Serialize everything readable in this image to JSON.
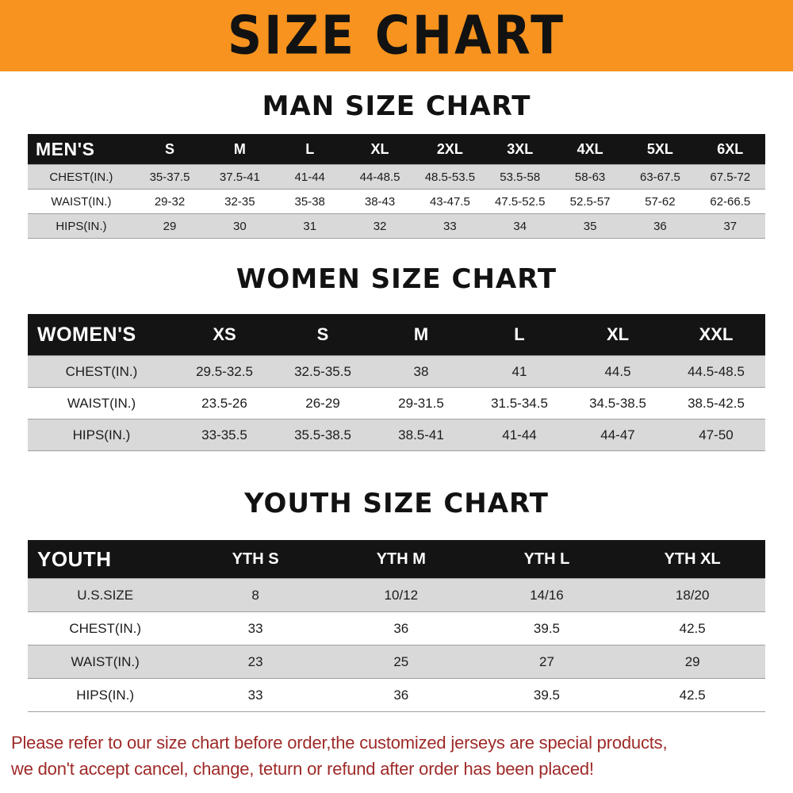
{
  "banner": {
    "title": "SIZE CHART",
    "bg_color": "#F7931E",
    "text_color": "#121212"
  },
  "chart_data": [
    {
      "type": "table",
      "title": "MAN SIZE CHART",
      "corner_label": "MEN'S",
      "columns": [
        "S",
        "M",
        "L",
        "XL",
        "2XL",
        "3XL",
        "4XL",
        "5XL",
        "6XL"
      ],
      "rows": [
        {
          "label": "CHEST(IN.)",
          "values": [
            "35-37.5",
            "37.5-41",
            "41-44",
            "44-48.5",
            "48.5-53.5",
            "53.5-58",
            "58-63",
            "63-67.5",
            "67.5-72"
          ]
        },
        {
          "label": "WAIST(IN.)",
          "values": [
            "29-32",
            "32-35",
            "35-38",
            "38-43",
            "43-47.5",
            "47.5-52.5",
            "52.5-57",
            "57-62",
            "62-66.5"
          ]
        },
        {
          "label": "HIPS(IN.)",
          "values": [
            "29",
            "30",
            "31",
            "32",
            "33",
            "34",
            "35",
            "36",
            "37"
          ]
        }
      ]
    },
    {
      "type": "table",
      "title": "WOMEN SIZE CHART",
      "corner_label": "WOMEN'S",
      "columns": [
        "XS",
        "S",
        "M",
        "L",
        "XL",
        "XXL"
      ],
      "rows": [
        {
          "label": "CHEST(IN.)",
          "values": [
            "29.5-32.5",
            "32.5-35.5",
            "38",
            "41",
            "44.5",
            "44.5-48.5"
          ]
        },
        {
          "label": "WAIST(IN.)",
          "values": [
            "23.5-26",
            "26-29",
            "29-31.5",
            "31.5-34.5",
            "34.5-38.5",
            "38.5-42.5"
          ]
        },
        {
          "label": "HIPS(IN.)",
          "values": [
            "33-35.5",
            "35.5-38.5",
            "38.5-41",
            "41-44",
            "44-47",
            "47-50"
          ]
        }
      ]
    },
    {
      "type": "table",
      "title": "YOUTH SIZE CHART",
      "corner_label": "YOUTH",
      "columns": [
        "YTH S",
        "YTH M",
        "YTH L",
        "YTH XL"
      ],
      "rows": [
        {
          "label": "U.S.SIZE",
          "values": [
            "8",
            "10/12",
            "14/16",
            "18/20"
          ]
        },
        {
          "label": "CHEST(IN.)",
          "values": [
            "33",
            "36",
            "39.5",
            "42.5"
          ]
        },
        {
          "label": "WAIST(IN.)",
          "values": [
            "23",
            "25",
            "27",
            "29"
          ]
        },
        {
          "label": "HIPS(IN.)",
          "values": [
            "33",
            "36",
            "39.5",
            "42.5"
          ]
        }
      ]
    }
  ],
  "footer": {
    "line1": "Please refer to our size chart before order,the customized jerseys are special products,",
    "line2": "we don't accept cancel, change, teturn or refund after order has been placed!",
    "text_color": "#9E2A28"
  },
  "colors": {
    "header_row_bg": "#141414",
    "header_row_text": "#FFFFFF",
    "shaded_row_bg": "#D9D9D9",
    "row_border": "#9F9F9F"
  }
}
